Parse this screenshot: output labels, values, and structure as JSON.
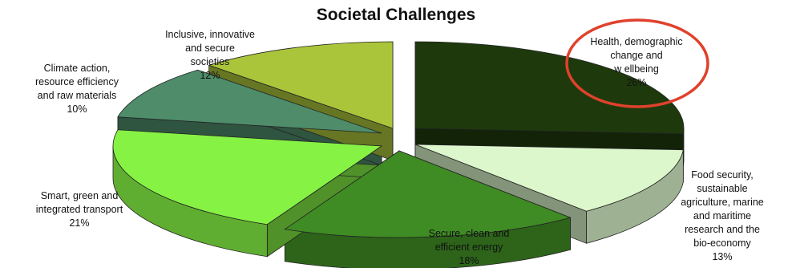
{
  "chart_data": {
    "type": "pie",
    "title": "Societal Challenges",
    "slices": [
      {
        "name": "Health, demographic change and wellbeing",
        "value": 26,
        "label": "26%",
        "color": "#1e3a0c"
      },
      {
        "name": "Food security, sustainable agriculture, marine and maritime research and the bio-economy",
        "value": 13,
        "label": "13%",
        "color": "#dcf7cc"
      },
      {
        "name": "Secure, clean and efficient energy",
        "value": 18,
        "label": "18%",
        "color": "#3f8b24"
      },
      {
        "name": "Smart, green and integrated transport",
        "value": 21,
        "label": "21%",
        "color": "#86f244"
      },
      {
        "name": "Climate action, resource efficiency and raw materials",
        "value": 10,
        "label": "10%",
        "color": "#4e8c6a"
      },
      {
        "name": "Inclusive, innovative and secure societies",
        "value": 12,
        "label": "12%",
        "color": "#abc53b"
      }
    ],
    "label_lines": {
      "health": [
        "Health, demographic",
        "change and",
        "w ellbeing",
        "26%"
      ],
      "food": [
        "Food security,",
        "sustainable",
        "agriculture, marine",
        "and maritime",
        "research and the",
        "bio-economy",
        "13%"
      ],
      "energy": [
        "Secure, clean and",
        "efficient energy",
        "18%"
      ],
      "transport": [
        "Smart, green and",
        "integrated transport",
        "21%"
      ],
      "climate": [
        "Climate action,",
        "resource efficiency",
        "and raw materials",
        "10%"
      ],
      "societies": [
        "Inclusive, innovative",
        "and secure",
        "societies",
        "12%"
      ]
    },
    "highlight": {
      "slice": "Health, demographic change and wellbeing",
      "color": "#e0412c"
    }
  }
}
